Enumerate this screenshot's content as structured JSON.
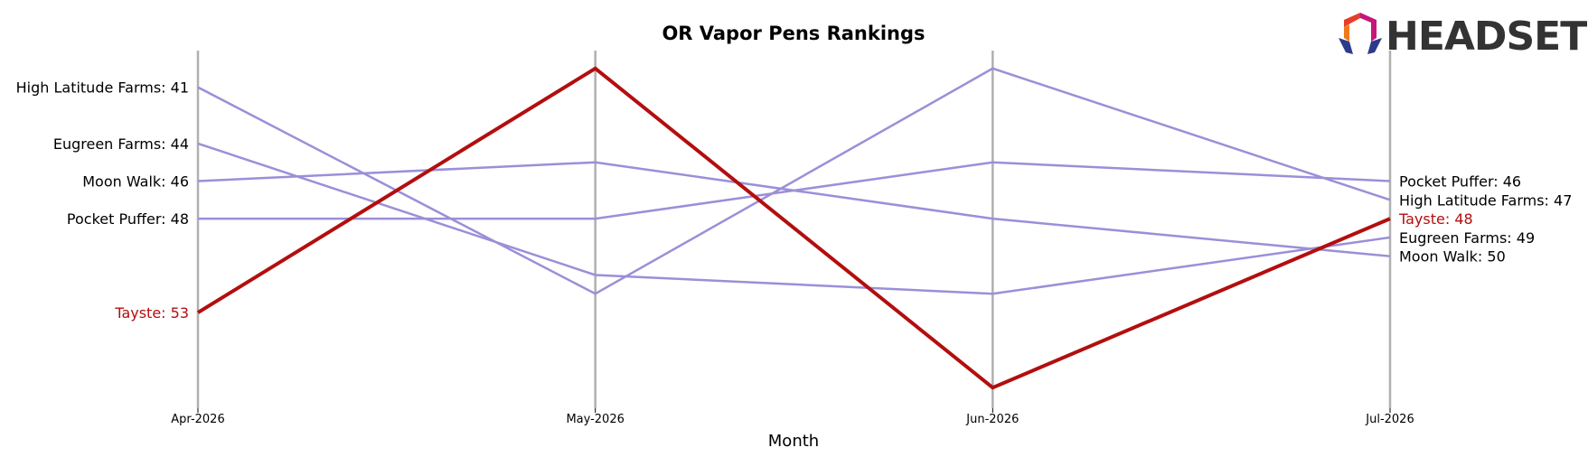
{
  "chart_data": {
    "type": "line",
    "title": "OR Vapor Pens Rankings",
    "xlabel": "Month",
    "ylabel": "",
    "categories": [
      "Apr-2026",
      "May-2026",
      "Jun-2026",
      "Jul-2026"
    ],
    "y_inverted": true,
    "ylim": [
      58,
      39
    ],
    "grid": false,
    "series": [
      {
        "name": "High Latitude Farms",
        "values": [
          41,
          52,
          40,
          47
        ],
        "highlight": false
      },
      {
        "name": "Eugreen Farms",
        "values": [
          44,
          51,
          52,
          49
        ],
        "highlight": false
      },
      {
        "name": "Moon Walk",
        "values": [
          46,
          45,
          48,
          50
        ],
        "highlight": false
      },
      {
        "name": "Pocket Puffer",
        "values": [
          48,
          48,
          45,
          46
        ],
        "highlight": false
      },
      {
        "name": "Tayste",
        "values": [
          53,
          40,
          57,
          48
        ],
        "highlight": true
      }
    ],
    "left_labels": [
      {
        "text": "High Latitude Farms: 41",
        "series": "High Latitude Farms"
      },
      {
        "text": "Eugreen Farms: 44",
        "series": "Eugreen Farms"
      },
      {
        "text": "Moon Walk: 46",
        "series": "Moon Walk"
      },
      {
        "text": "Pocket Puffer: 48",
        "series": "Pocket Puffer"
      },
      {
        "text": "Tayste: 53",
        "series": "Tayste"
      }
    ],
    "right_labels": [
      {
        "text": "Pocket Puffer: 46",
        "series": "Pocket Puffer"
      },
      {
        "text": "High Latitude Farms: 47",
        "series": "High Latitude Farms"
      },
      {
        "text": "Tayste: 48",
        "series": "Tayste"
      },
      {
        "text": "Eugreen Farms: 49",
        "series": "Eugreen Farms"
      },
      {
        "text": "Moon Walk: 50",
        "series": "Moon Walk"
      }
    ]
  },
  "colors": {
    "normal_line": "#9b8fd8",
    "highlight_line": "#b30e0e",
    "axis_line": "#b0b0b0",
    "highlight_text": "#b30e0e",
    "normal_text": "#000000"
  },
  "logo": {
    "text": "HEADSET"
  }
}
